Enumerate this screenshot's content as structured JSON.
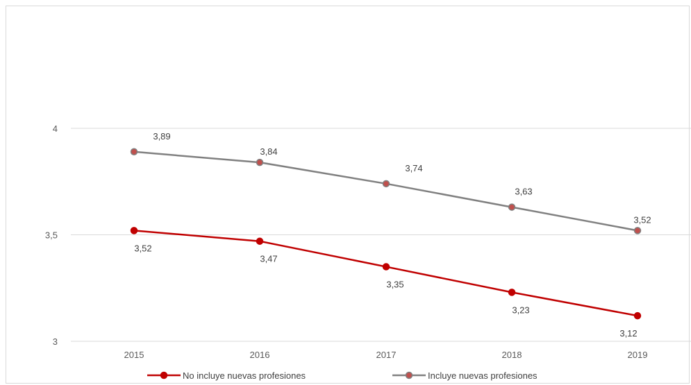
{
  "chart_data": {
    "type": "line",
    "title": "",
    "xlabel": "",
    "ylabel": "",
    "x": [
      "2015",
      "2016",
      "2017",
      "2018",
      "2019"
    ],
    "ylim": [
      3,
      4
    ],
    "yticks": [
      3,
      3.5,
      4
    ],
    "ytick_labels": [
      "3",
      "3,5",
      "4"
    ],
    "grid": true,
    "legend_position": "bottom",
    "series": [
      {
        "name": "No incluye nuevas profesiones",
        "color": "#c00000",
        "values": [
          3.52,
          3.47,
          3.35,
          3.23,
          3.12
        ],
        "labels": [
          "3,52",
          "3,47",
          "3,35",
          "3,23",
          "3,12"
        ],
        "label_position": "below"
      },
      {
        "name": "Incluye nuevas profesiones",
        "color": "#808080",
        "marker_color": "#c0504d",
        "values": [
          3.89,
          3.84,
          3.74,
          3.63,
          3.52
        ],
        "labels": [
          "3,89",
          "3,84",
          "3,74",
          "3,63",
          "3,52"
        ],
        "label_position": "above"
      }
    ]
  }
}
